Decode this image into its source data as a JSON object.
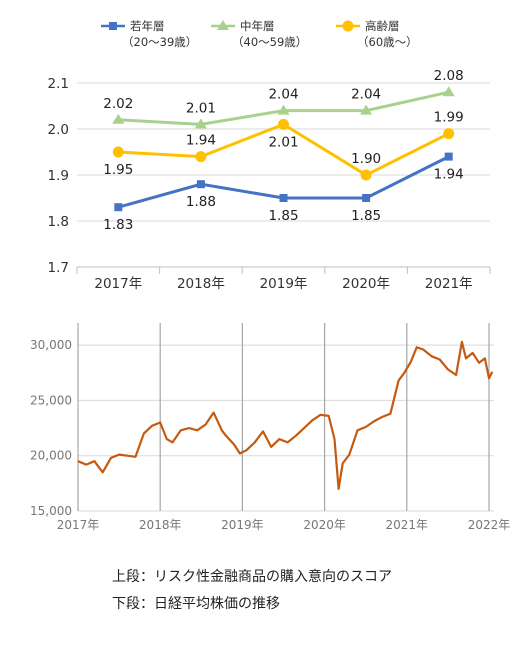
{
  "chart_data": [
    {
      "type": "line",
      "categories": [
        "2017年",
        "2018年",
        "2019年",
        "2020年",
        "2021年"
      ],
      "ylim": [
        1.7,
        2.1
      ],
      "yticks": [
        "1.7",
        "1.8",
        "1.9",
        "2.0",
        "2.1"
      ],
      "grid": true,
      "legend": "top",
      "series": [
        {
          "name": "若年層",
          "sub": "（20～39歳）",
          "color": "#4472c4",
          "marker": "square",
          "values": [
            1.83,
            1.88,
            1.85,
            1.85,
            1.94
          ],
          "labels": [
            "1.83",
            "1.88",
            "1.85",
            "1.85",
            "1.94"
          ]
        },
        {
          "name": "中年層",
          "sub": "（40～59歳）",
          "color": "#a9d18e",
          "marker": "triangle",
          "values": [
            2.02,
            2.01,
            2.04,
            2.04,
            2.08
          ],
          "labels": [
            "2.02",
            "2.01",
            "2.04",
            "2.04",
            "2.08"
          ]
        },
        {
          "name": "高齢層",
          "sub": "（60歳～）",
          "color": "#ffc000",
          "marker": "circle",
          "values": [
            1.95,
            1.94,
            2.01,
            1.9,
            1.99
          ],
          "labels": [
            "1.95",
            "1.94",
            "2.01",
            "1.90",
            "1.99"
          ]
        }
      ]
    },
    {
      "type": "line",
      "color": "#c55a11",
      "ylim": [
        15000,
        32000
      ],
      "yticks": [
        "15,000",
        "20,000",
        "25,000",
        "30,000"
      ],
      "yticks_values": [
        15000,
        20000,
        25000,
        30000
      ],
      "xticks": [
        "2017年",
        "2018年",
        "2019年",
        "2020年",
        "2021年",
        "2022年"
      ],
      "x": [
        2017.0,
        2017.1,
        2017.2,
        2017.3,
        2017.4,
        2017.5,
        2017.6,
        2017.7,
        2017.8,
        2017.9,
        2018.0,
        2018.08,
        2018.15,
        2018.25,
        2018.35,
        2018.45,
        2018.55,
        2018.65,
        2018.75,
        2018.8,
        2018.9,
        2018.97,
        2019.05,
        2019.15,
        2019.25,
        2019.35,
        2019.45,
        2019.55,
        2019.65,
        2019.75,
        2019.85,
        2019.95,
        2020.05,
        2020.12,
        2020.17,
        2020.22,
        2020.3,
        2020.4,
        2020.5,
        2020.6,
        2020.7,
        2020.8,
        2020.9,
        2020.97,
        2021.05,
        2021.12,
        2021.2,
        2021.3,
        2021.4,
        2021.5,
        2021.6,
        2021.67,
        2021.72,
        2021.8,
        2021.88,
        2021.95,
        2022.0,
        2022.04
      ],
      "y": [
        19500,
        19200,
        19500,
        18500,
        19800,
        20100,
        20000,
        19900,
        22000,
        22700,
        23000,
        21500,
        21200,
        22300,
        22500,
        22300,
        22800,
        23900,
        22300,
        21800,
        21000,
        20200,
        20500,
        21200,
        22200,
        20800,
        21500,
        21200,
        21800,
        22500,
        23200,
        23700,
        23600,
        21500,
        17000,
        19300,
        20100,
        22300,
        22600,
        23100,
        23500,
        23800,
        26800,
        27500,
        28500,
        29800,
        29600,
        29000,
        28700,
        27800,
        27300,
        30300,
        28800,
        29300,
        28400,
        28800,
        27000,
        27600
      ]
    }
  ],
  "captions": {
    "top": "上段：リスク性金融商品の購入意向のスコア",
    "bottom": "下段：日経平均株価の推移"
  }
}
